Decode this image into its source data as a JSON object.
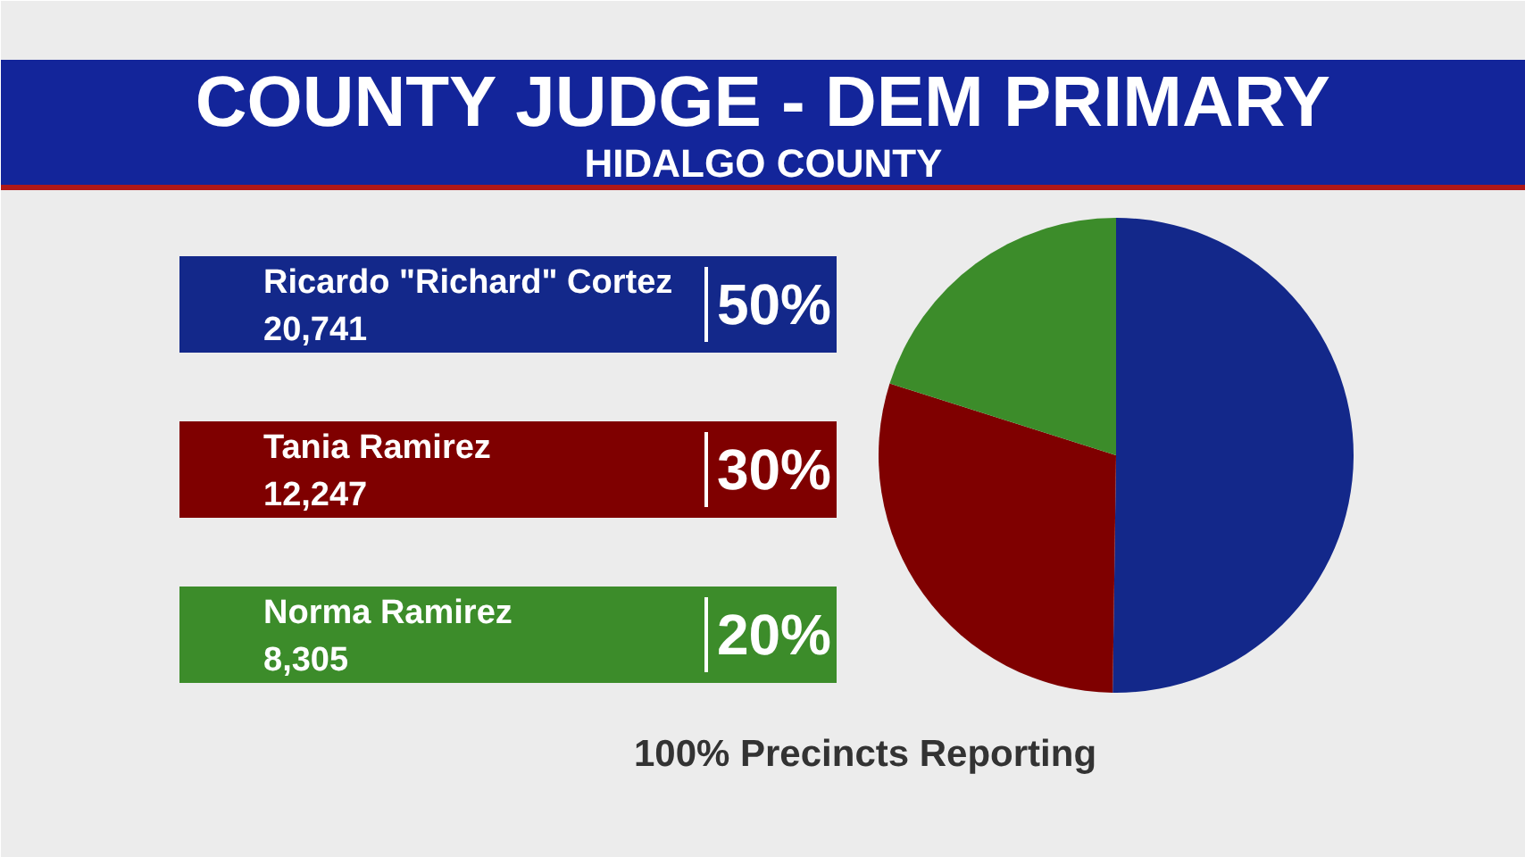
{
  "chart_data": {
    "type": "pie",
    "title": "COUNTY JUDGE - DEM PRIMARY",
    "subtitle": "HIDALGO COUNTY",
    "categories": [
      "Ricardo \"Richard\" Cortez",
      "Tania Ramirez",
      "Norma Ramirez"
    ],
    "values": [
      20741,
      12247,
      8305
    ],
    "colors": [
      "#13288a",
      "#7f0000",
      "#3c8c2a"
    ],
    "value_labels": [
      "20,741",
      "12,247",
      "8,305"
    ],
    "legend": "left",
    "annotations": [
      {
        "text": "50%",
        "x": "Ricardo \"Richard\" Cortez"
      },
      {
        "text": "30%",
        "x": "Tania Ramirez"
      },
      {
        "text": "20%",
        "x": "Norma Ramirez"
      },
      "100% Precincts Reporting"
    ]
  }
}
